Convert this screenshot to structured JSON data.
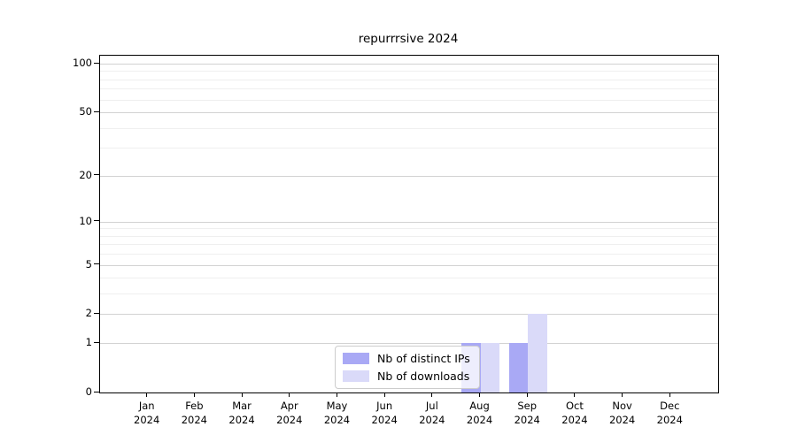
{
  "figure": {
    "background": "#ffffff"
  },
  "chart_data": {
    "type": "bar",
    "title": "repurrrsive 2024",
    "categories": [
      "Jan 2024",
      "Feb 2024",
      "Mar 2024",
      "Apr 2024",
      "May 2024",
      "Jun 2024",
      "Jul 2024",
      "Aug 2024",
      "Sep 2024",
      "Oct 2024",
      "Nov 2024",
      "Dec 2024"
    ],
    "series": [
      {
        "name": "Nb of distinct IPs",
        "color": "#a9a9f5",
        "values": [
          0,
          0,
          0,
          0,
          0,
          0,
          0,
          1,
          1,
          0,
          0,
          0
        ]
      },
      {
        "name": "Nb of downloads",
        "color": "#dadaf9",
        "values": [
          0,
          0,
          0,
          0,
          0,
          0,
          0,
          1,
          2,
          0,
          0,
          0
        ]
      }
    ],
    "xlabel": "",
    "ylabel": "",
    "yscale": "log1p",
    "ylim": [
      0,
      112
    ],
    "yticks": [
      0,
      1,
      2,
      5,
      10,
      20,
      50,
      100
    ],
    "ytick_labels": [
      "0",
      "1",
      "2",
      "5",
      "10",
      "20",
      "50",
      "100"
    ],
    "minor_yticks": [
      3,
      4,
      6,
      7,
      8,
      9,
      30,
      40,
      60,
      70,
      80,
      90
    ],
    "grid": "horizontal",
    "legend_position": "lower center inside",
    "bar_group": "paired side-by-side per month"
  }
}
